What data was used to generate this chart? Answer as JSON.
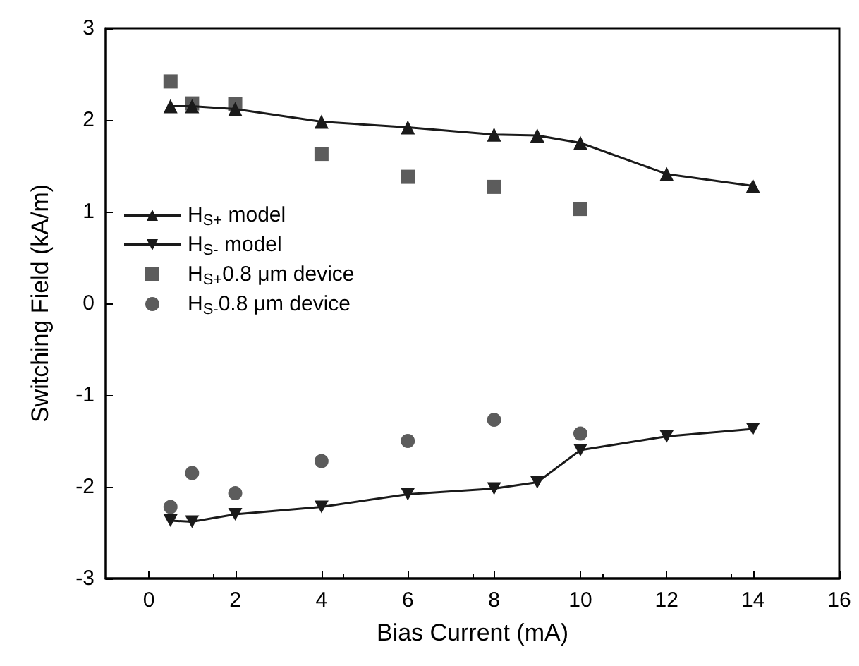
{
  "chart_data": {
    "type": "line",
    "xlabel": "Bias Current (mA)",
    "ylabel": "Switching Field (kA/m)",
    "xlim": [
      -1,
      16
    ],
    "xticks": [
      0,
      2,
      4,
      6,
      8,
      10,
      12,
      14,
      16
    ],
    "ylim": [
      -3,
      3
    ],
    "yticks": [
      -3,
      -2,
      -1,
      0,
      1,
      2,
      3
    ],
    "grid": false,
    "legend": "left",
    "series": [
      {
        "name": "H$_{S+}$ model",
        "marker": "triangle",
        "color": "#1a1a1a",
        "x": [
          0.5,
          1,
          2,
          4,
          6,
          8,
          9,
          10,
          12,
          14
        ],
        "values": [
          2.15,
          2.15,
          2.12,
          1.98,
          1.92,
          1.84,
          1.83,
          1.75,
          1.41,
          1.28
        ]
      },
      {
        "name": "H$_{S-}$ model",
        "marker": "triangle-down",
        "color": "#1a1a1a",
        "x": [
          0.5,
          1,
          2,
          4,
          6,
          8,
          9,
          10,
          12,
          14
        ],
        "values": [
          -2.37,
          -2.38,
          -2.3,
          -2.22,
          -2.08,
          -2.02,
          -1.95,
          -1.6,
          -1.45,
          -1.37
        ]
      },
      {
        "name": "H$_{S+}$0.8 μm device",
        "type": "scatter",
        "marker": "square",
        "color": "#333333",
        "x": [
          0.5,
          1,
          2,
          4,
          6,
          8,
          10
        ],
        "values": [
          2.42,
          2.18,
          2.17,
          1.63,
          1.38,
          1.27,
          1.03
        ]
      },
      {
        "name": "H$_{S-}$0.8 μm device",
        "type": "scatter",
        "marker": "circle",
        "color": "#333333",
        "x": [
          0.5,
          1,
          2,
          4,
          6,
          8,
          10
        ],
        "values": [
          -2.22,
          -1.85,
          -2.07,
          -1.72,
          -1.5,
          -1.27,
          -1.42
        ]
      }
    ]
  }
}
